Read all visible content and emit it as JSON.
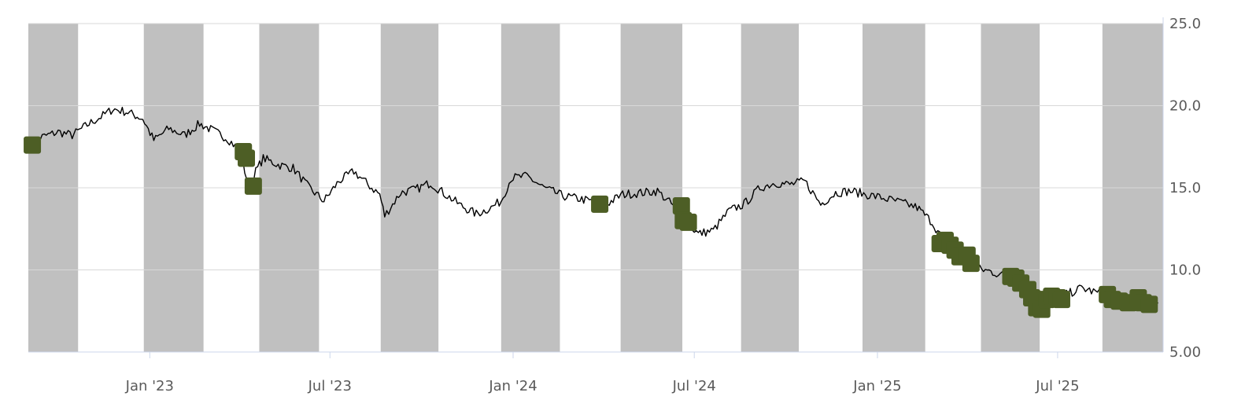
{
  "chart_data": {
    "type": "line",
    "title": "",
    "xlabel": "",
    "ylabel": "",
    "ylim": [
      5,
      25
    ],
    "xlim": [
      "2022-09-01",
      "2025-10-15"
    ],
    "y_axis_side": "right",
    "y_ticks": [
      {
        "value": 25,
        "label": "25.0"
      },
      {
        "value": 20,
        "label": "20.0"
      },
      {
        "value": 15,
        "label": "15.0"
      },
      {
        "value": 10,
        "label": "10.0"
      },
      {
        "value": 5,
        "label": "5.00"
      }
    ],
    "x_ticks": [
      {
        "date": "2023-01-01",
        "label": "Jan '23"
      },
      {
        "date": "2023-07-01",
        "label": "Jul '23"
      },
      {
        "date": "2024-01-01",
        "label": "Jan '24"
      },
      {
        "date": "2024-07-01",
        "label": "Jul '24"
      },
      {
        "date": "2025-01-01",
        "label": "Jan '25"
      },
      {
        "date": "2025-07-01",
        "label": "Jul '25"
      }
    ],
    "grid": true,
    "band_color": "#c0c0c0",
    "line_color": "#000000",
    "marker_color": "#4d5e25",
    "bands": [
      [
        "2022-09-01",
        "2022-10-21"
      ],
      [
        "2022-12-26",
        "2023-02-24"
      ],
      [
        "2023-04-21",
        "2023-06-20"
      ],
      [
        "2023-08-21",
        "2023-10-18"
      ],
      [
        "2023-12-20",
        "2024-02-17"
      ],
      [
        "2024-04-18",
        "2024-06-19"
      ],
      [
        "2024-08-17",
        "2024-10-14"
      ],
      [
        "2024-12-17",
        "2025-02-18"
      ],
      [
        "2025-04-15",
        "2025-06-13"
      ],
      [
        "2025-08-15",
        "2025-10-15"
      ]
    ],
    "series": [
      {
        "type": "line",
        "points": [
          [
            "2022-09-01",
            17.6
          ],
          [
            "2022-09-15",
            18.1
          ],
          [
            "2022-10-01",
            18.4
          ],
          [
            "2022-10-15",
            18.2
          ],
          [
            "2022-11-01",
            18.9
          ],
          [
            "2022-11-15",
            19.4
          ],
          [
            "2022-11-25",
            19.8
          ],
          [
            "2022-12-10",
            19.6
          ],
          [
            "2022-12-25",
            19.2
          ],
          [
            "2023-01-05",
            17.9
          ],
          [
            "2023-01-20",
            18.6
          ],
          [
            "2023-02-05",
            18.2
          ],
          [
            "2023-02-20",
            18.9
          ],
          [
            "2023-03-05",
            18.5
          ],
          [
            "2023-03-20",
            18.0
          ],
          [
            "2023-04-01",
            17.3
          ],
          [
            "2023-04-10",
            15.2
          ],
          [
            "2023-04-25",
            16.8
          ],
          [
            "2023-05-10",
            16.4
          ],
          [
            "2023-05-25",
            16.2
          ],
          [
            "2023-06-10",
            15.0
          ],
          [
            "2023-06-25",
            14.2
          ],
          [
            "2023-07-10",
            15.4
          ],
          [
            "2023-07-25",
            16.0
          ],
          [
            "2023-08-10",
            15.1
          ],
          [
            "2023-08-20",
            14.6
          ],
          [
            "2023-08-25",
            13.3
          ],
          [
            "2023-09-10",
            14.7
          ],
          [
            "2023-09-25",
            14.9
          ],
          [
            "2023-10-10",
            15.3
          ],
          [
            "2023-10-25",
            14.6
          ],
          [
            "2023-11-10",
            13.9
          ],
          [
            "2023-11-25",
            13.4
          ],
          [
            "2023-12-10",
            13.8
          ],
          [
            "2023-12-20",
            14.2
          ],
          [
            "2023-12-30",
            15.6
          ],
          [
            "2024-01-15",
            15.7
          ],
          [
            "2024-02-01",
            15.0
          ],
          [
            "2024-02-20",
            14.5
          ],
          [
            "2024-03-10",
            14.3
          ],
          [
            "2024-03-25",
            14.1
          ],
          [
            "2024-04-01",
            13.9
          ],
          [
            "2024-04-20",
            14.6
          ],
          [
            "2024-05-10",
            14.7
          ],
          [
            "2024-05-25",
            14.8
          ],
          [
            "2024-06-10",
            13.9
          ],
          [
            "2024-06-25",
            12.8
          ],
          [
            "2024-07-05",
            12.2
          ],
          [
            "2024-07-20",
            12.4
          ],
          [
            "2024-08-05",
            13.6
          ],
          [
            "2024-08-20",
            14.0
          ],
          [
            "2024-09-05",
            15.0
          ],
          [
            "2024-09-20",
            15.3
          ],
          [
            "2024-10-05",
            15.2
          ],
          [
            "2024-10-20",
            15.4
          ],
          [
            "2024-11-05",
            14.0
          ],
          [
            "2024-11-20",
            14.7
          ],
          [
            "2024-12-05",
            14.8
          ],
          [
            "2024-12-20",
            14.6
          ],
          [
            "2025-01-05",
            14.4
          ],
          [
            "2025-01-25",
            14.1
          ],
          [
            "2025-02-10",
            13.8
          ],
          [
            "2025-02-25",
            12.9
          ],
          [
            "2025-03-10",
            11.6
          ],
          [
            "2025-03-25",
            10.9
          ],
          [
            "2025-04-10",
            10.1
          ],
          [
            "2025-04-25",
            9.9
          ],
          [
            "2025-05-10",
            9.6
          ],
          [
            "2025-05-25",
            9.0
          ],
          [
            "2025-06-10",
            7.9
          ],
          [
            "2025-06-25",
            8.1
          ],
          [
            "2025-07-10",
            8.5
          ],
          [
            "2025-07-25",
            8.9
          ],
          [
            "2025-08-10",
            8.6
          ],
          [
            "2025-08-25",
            8.4
          ],
          [
            "2025-09-10",
            8.1
          ],
          [
            "2025-09-25",
            7.9
          ],
          [
            "2025-10-10",
            8.0
          ]
        ]
      },
      {
        "type": "markers",
        "points": [
          [
            "2022-09-05",
            17.6
          ],
          [
            "2023-04-05",
            17.2
          ],
          [
            "2023-04-08",
            16.8
          ],
          [
            "2023-04-15",
            15.1
          ],
          [
            "2024-03-28",
            14.0
          ],
          [
            "2024-06-18",
            13.9
          ],
          [
            "2024-06-20",
            13.0
          ],
          [
            "2024-06-25",
            12.9
          ],
          [
            "2025-03-05",
            11.6
          ],
          [
            "2025-03-10",
            11.8
          ],
          [
            "2025-03-15",
            11.5
          ],
          [
            "2025-03-20",
            11.2
          ],
          [
            "2025-03-25",
            10.8
          ],
          [
            "2025-04-01",
            10.9
          ],
          [
            "2025-04-05",
            10.4
          ],
          [
            "2025-05-15",
            9.6
          ],
          [
            "2025-05-20",
            9.5
          ],
          [
            "2025-05-25",
            9.2
          ],
          [
            "2025-06-01",
            8.8
          ],
          [
            "2025-06-05",
            8.3
          ],
          [
            "2025-06-10",
            7.7
          ],
          [
            "2025-06-15",
            7.6
          ],
          [
            "2025-06-20",
            8.2
          ],
          [
            "2025-06-25",
            8.4
          ],
          [
            "2025-07-01",
            8.3
          ],
          [
            "2025-07-05",
            8.2
          ],
          [
            "2025-08-20",
            8.5
          ],
          [
            "2025-08-25",
            8.2
          ],
          [
            "2025-09-01",
            8.1
          ],
          [
            "2025-09-10",
            8.0
          ],
          [
            "2025-09-20",
            8.3
          ],
          [
            "2025-09-25",
            8.0
          ],
          [
            "2025-10-01",
            7.9
          ]
        ]
      }
    ]
  }
}
